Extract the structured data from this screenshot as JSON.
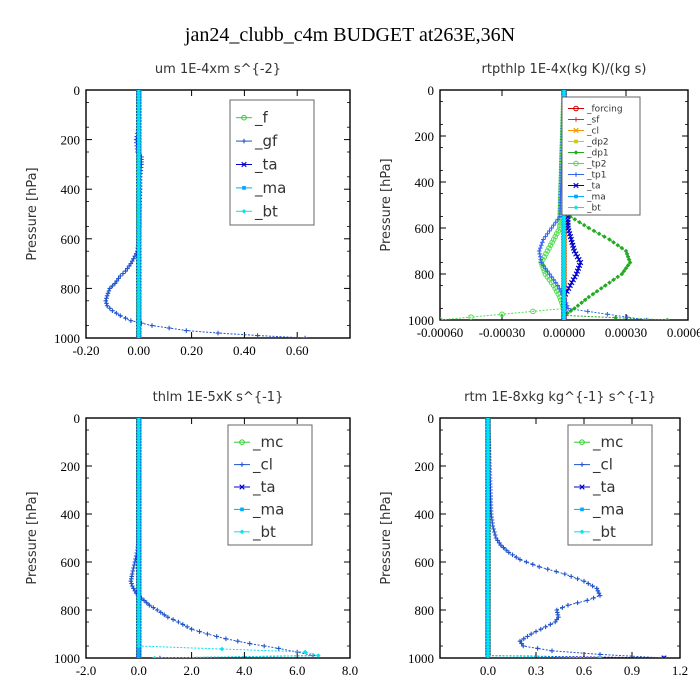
{
  "figure_title": "jan24_clubb_c4m  BUDGET at263E,36N",
  "chart_data": [
    {
      "type": "line",
      "title": "um   1E-4xm s^{-2}",
      "ylabel": "Pressure [hPa]",
      "xlim": [
        -0.2,
        0.8
      ],
      "ylim": [
        1000,
        0
      ],
      "xticks": [
        -0.2,
        0.0,
        0.2,
        0.4,
        0.6
      ],
      "xtick_labels": [
        "-0.20",
        "0.00",
        "0.20",
        "0.40",
        "0.60"
      ],
      "yticks": [
        0,
        200,
        400,
        600,
        800,
        1000
      ],
      "ytick_labels": [
        "0",
        "200",
        "400",
        "600",
        "800",
        "1000"
      ],
      "legend_position": "top-right",
      "series": [
        {
          "name": "_f",
          "color": "#33cc33",
          "y": [
            0,
            50,
            100,
            150,
            200,
            250,
            300,
            350,
            400,
            450,
            500,
            550,
            600,
            650,
            700,
            750,
            800,
            850,
            900,
            950,
            975,
            990,
            1000
          ],
          "x": [
            0,
            0,
            0,
            0,
            0,
            0,
            0,
            0,
            0,
            0,
            0,
            0,
            0,
            0,
            0,
            0,
            0,
            0,
            0,
            0,
            0,
            0,
            0
          ]
        },
        {
          "name": "_gf",
          "color": "#2255cc",
          "y": [
            0,
            100,
            150,
            200,
            250,
            270,
            300,
            350,
            400,
            450,
            500,
            550,
            600,
            650,
            680,
            700,
            730,
            750,
            780,
            800,
            830,
            850,
            870,
            890,
            910,
            930,
            950,
            970,
            980,
            990,
            1000
          ],
          "x": [
            0,
            0,
            0,
            -0.01,
            -0.005,
            0.01,
            0.01,
            0.005,
            0.005,
            0.003,
            0.002,
            0.002,
            0.0,
            -0.005,
            -0.02,
            -0.03,
            -0.05,
            -0.07,
            -0.09,
            -0.11,
            -0.12,
            -0.125,
            -0.12,
            -0.1,
            -0.07,
            -0.03,
            0.05,
            0.18,
            0.3,
            0.45,
            0.63
          ]
        },
        {
          "name": "_ta",
          "color": "#0000cc",
          "y": [
            0,
            500,
            900,
            980,
            1000
          ],
          "x": [
            0,
            0,
            0,
            0,
            0
          ]
        },
        {
          "name": "_ma",
          "color": "#00aaff",
          "y": [
            0,
            500,
            980,
            1000
          ],
          "x": [
            0,
            0,
            0,
            0
          ]
        },
        {
          "name": "_bt",
          "color": "#00e5ee",
          "y": [
            0,
            200,
            400,
            600,
            800,
            1000
          ],
          "x": [
            0,
            0,
            0,
            0,
            0,
            0
          ]
        }
      ]
    },
    {
      "type": "line",
      "title": "rtpthlp   1E-4x(kg K)/(kg s)",
      "ylabel": "Pressure [hPa]",
      "xlim": [
        -0.0006,
        0.0006
      ],
      "ylim": [
        1000,
        0
      ],
      "xticks": [
        -0.0006,
        -0.0003,
        0.0,
        0.0003,
        0.0006
      ],
      "xtick_labels": [
        "-0.00060",
        "-0.00030",
        "0.00000",
        "0.00030",
        "0.00060"
      ],
      "yticks": [
        0,
        200,
        400,
        600,
        800,
        1000
      ],
      "ytick_labels": [
        "0",
        "200",
        "400",
        "600",
        "800",
        "1000"
      ],
      "legend_position": "top-right",
      "series": [
        {
          "name": "_forcing",
          "color": "#cc0000",
          "y": [
            0,
            1000
          ],
          "x": [
            0,
            0
          ]
        },
        {
          "name": "_sf",
          "color": "#ee2222",
          "y": [
            0,
            1000
          ],
          "x": [
            0,
            0
          ]
        },
        {
          "name": "_cl",
          "color": "#ee9900",
          "y": [
            0,
            1000
          ],
          "x": [
            0,
            0
          ]
        },
        {
          "name": "_dp2",
          "color": "#cccc00",
          "y": [
            0,
            1000
          ],
          "x": [
            0,
            0
          ]
        },
        {
          "name": "_dp1",
          "color": "#22aa22",
          "y": [
            0,
            500,
            550,
            600,
            650,
            700,
            750,
            800,
            850,
            900,
            950,
            980,
            1000
          ],
          "x": [
            0,
            0,
            3e-05,
            0.00012,
            0.00022,
            0.0003,
            0.00032,
            0.00028,
            0.0002,
            0.00012,
            5e-05,
            0.0,
            0.0005
          ]
        },
        {
          "name": "_tp2",
          "color": "#55dd55",
          "y": [
            0,
            600,
            700,
            750,
            800,
            850,
            900,
            950,
            1000
          ],
          "x": [
            0,
            -2e-05,
            -8e-05,
            -0.00011,
            -9e-05,
            -5e-05,
            -2e-05,
            0,
            -0.0006
          ]
        },
        {
          "name": "_tp1",
          "color": "#3366ee",
          "y": [
            0,
            550,
            600,
            650,
            700,
            750,
            800,
            850,
            900,
            950,
            1000
          ],
          "x": [
            0,
            -2e-05,
            -6e-05,
            -0.0001,
            -0.00012,
            -0.00011,
            -7e-05,
            -3e-05,
            0,
            2e-05,
            0.0004
          ]
        },
        {
          "name": "_ta",
          "color": "#0000cc",
          "y": [
            0,
            600,
            700,
            750,
            800,
            850,
            900,
            1000
          ],
          "x": [
            0,
            2e-05,
            5e-05,
            8e-05,
            6e-05,
            3e-05,
            0,
            0
          ]
        },
        {
          "name": "_ma",
          "color": "#00aaff",
          "y": [
            0,
            1000
          ],
          "x": [
            0,
            0
          ]
        },
        {
          "name": "_bt",
          "color": "#00e5ee",
          "y": [
            0,
            1000
          ],
          "x": [
            0,
            0
          ]
        }
      ]
    },
    {
      "type": "line",
      "title": "thlm   1E-5xK s^{-1}",
      "ylabel": "Pressure [hPa]",
      "xlim": [
        -2.0,
        8.0
      ],
      "ylim": [
        1000,
        0
      ],
      "xticks": [
        -2.0,
        0.0,
        2.0,
        4.0,
        6.0,
        8.0
      ],
      "xtick_labels": [
        "-2.0",
        "0.0",
        "2.0",
        "4.0",
        "6.0",
        "8.0"
      ],
      "yticks": [
        0,
        200,
        400,
        600,
        800,
        1000
      ],
      "ytick_labels": [
        "0",
        "200",
        "400",
        "600",
        "800",
        "1000"
      ],
      "legend_position": "top-right",
      "series": [
        {
          "name": "_mc",
          "color": "#33cc33",
          "y": [
            0,
            100,
            200,
            300,
            400,
            500,
            600,
            700,
            800,
            900,
            1000
          ],
          "x": [
            0,
            0,
            0,
            0,
            0,
            0,
            0,
            0,
            0,
            0,
            0
          ]
        },
        {
          "name": "_cl",
          "color": "#2255cc",
          "y": [
            0,
            100,
            200,
            300,
            400,
            500,
            550,
            600,
            650,
            680,
            700,
            730,
            750,
            780,
            800,
            830,
            850,
            880,
            900,
            920,
            940,
            960,
            975,
            990,
            1000
          ],
          "x": [
            0,
            0,
            0,
            0,
            0,
            0,
            -0.05,
            -0.15,
            -0.25,
            -0.3,
            -0.25,
            -0.1,
            0.1,
            0.4,
            0.7,
            1.1,
            1.5,
            2.0,
            2.6,
            3.3,
            4.2,
            5.3,
            6.0,
            6.6,
            0.8
          ]
        },
        {
          "name": "_ta",
          "color": "#0000cc",
          "y": [
            0,
            500,
            1000
          ],
          "x": [
            0,
            0,
            0
          ]
        },
        {
          "name": "_ma",
          "color": "#00aaff",
          "y": [
            0,
            1000
          ],
          "x": [
            0,
            0
          ]
        },
        {
          "name": "_bt",
          "color": "#00e5ee",
          "y": [
            0,
            500,
            950,
            975,
            990,
            1000
          ],
          "x": [
            0,
            0,
            0,
            6.3,
            6.8,
            0.6
          ]
        }
      ]
    },
    {
      "type": "line",
      "title": "rtm   1E-8xkg kg^{-1} s^{-1}",
      "ylabel": "Pressure [hPa]",
      "xlim": [
        -0.3,
        1.2
      ],
      "ylim": [
        1000,
        0
      ],
      "xticks": [
        0.0,
        0.3,
        0.6,
        0.9,
        1.2
      ],
      "xtick_labels": [
        "0.0",
        "0.3",
        "0.6",
        "0.9",
        "1.2"
      ],
      "yticks": [
        0,
        200,
        400,
        600,
        800,
        1000
      ],
      "ytick_labels": [
        "0",
        "200",
        "400",
        "600",
        "800",
        "1000"
      ],
      "legend_position": "top-right",
      "series": [
        {
          "name": "_mc",
          "color": "#33cc33",
          "y": [
            0,
            200,
            400,
            600,
            800,
            1000
          ],
          "x": [
            0,
            0,
            0,
            0,
            0,
            0
          ]
        },
        {
          "name": "_cl",
          "color": "#2255cc",
          "y": [
            0,
            100,
            200,
            300,
            400,
            450,
            500,
            530,
            560,
            590,
            620,
            650,
            680,
            710,
            740,
            760,
            780,
            800,
            830,
            850,
            870,
            900,
            930,
            950,
            970,
            985,
            1000
          ],
          "x": [
            0,
            0.005,
            0.01,
            0.015,
            0.02,
            0.03,
            0.05,
            0.08,
            0.13,
            0.2,
            0.32,
            0.48,
            0.6,
            0.68,
            0.7,
            0.62,
            0.5,
            0.43,
            0.44,
            0.42,
            0.36,
            0.27,
            0.2,
            0.22,
            0.4,
            0.7,
            1.1
          ]
        },
        {
          "name": "_ta",
          "color": "#0000cc",
          "y": [
            0,
            500,
            990,
            1000
          ],
          "x": [
            0,
            0,
            0,
            1.1
          ]
        },
        {
          "name": "_ma",
          "color": "#00aaff",
          "y": [
            0,
            1000
          ],
          "x": [
            0,
            0
          ]
        },
        {
          "name": "_bt",
          "color": "#00e5ee",
          "y": [
            0,
            500,
            990,
            1000
          ],
          "x": [
            0,
            0,
            0,
            0.7
          ]
        }
      ]
    }
  ]
}
